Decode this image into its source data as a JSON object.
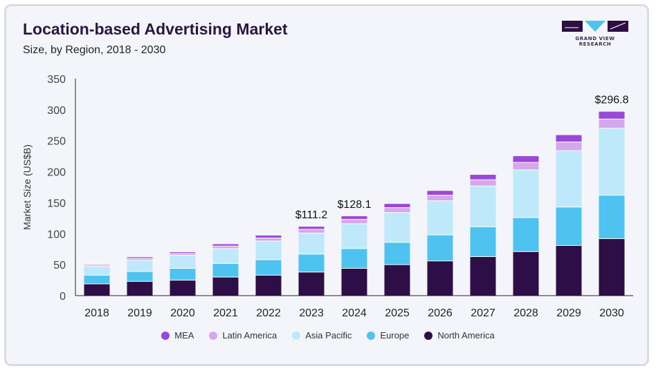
{
  "header": {
    "title": "Location-based Advertising Market",
    "subtitle": "Size, by Region, 2018 - 2030"
  },
  "brand": {
    "logo_text": "GRAND VIEW RESEARCH"
  },
  "chart_data": {
    "type": "bar",
    "stacked": true,
    "ylabel": "Market Size (US$B)",
    "ylim": [
      0,
      350
    ],
    "yticks": [
      0,
      50,
      100,
      150,
      200,
      250,
      300,
      350
    ],
    "grid": false,
    "legend_position": "bottom",
    "categories": [
      "2018",
      "2019",
      "2020",
      "2021",
      "2022",
      "2023",
      "2024",
      "2025",
      "2026",
      "2027",
      "2028",
      "2029",
      "2030"
    ],
    "series": [
      {
        "name": "North America",
        "color": "#2d0f45",
        "values": [
          19,
          23,
          25,
          30,
          33,
          38,
          44,
          50,
          56,
          63,
          71,
          81,
          92
        ]
      },
      {
        "name": "Europe",
        "color": "#4fc3f0",
        "values": [
          14,
          16,
          19,
          22,
          25,
          29,
          32,
          36,
          42,
          48,
          55,
          62,
          70
        ]
      },
      {
        "name": "Asia Pacific",
        "color": "#bde9fb",
        "values": [
          14,
          18,
          21,
          24,
          30,
          34,
          40,
          48,
          55,
          66,
          77,
          91,
          108
        ]
      },
      {
        "name": "Latin America",
        "color": "#d5a8ec",
        "values": [
          2,
          3,
          3,
          4,
          5,
          6,
          7,
          8,
          9,
          10,
          12,
          14,
          15
        ]
      },
      {
        "name": "MEA",
        "color": "#9b48d8",
        "values": [
          1,
          2,
          2,
          3,
          4,
          4.2,
          5.1,
          6,
          7,
          8,
          10,
          11,
          11.8
        ]
      }
    ],
    "annotations": [
      {
        "category": "2023",
        "text": "$111.2"
      },
      {
        "category": "2024",
        "text": "$128.1"
      },
      {
        "category": "2030",
        "text": "$296.8"
      }
    ]
  }
}
